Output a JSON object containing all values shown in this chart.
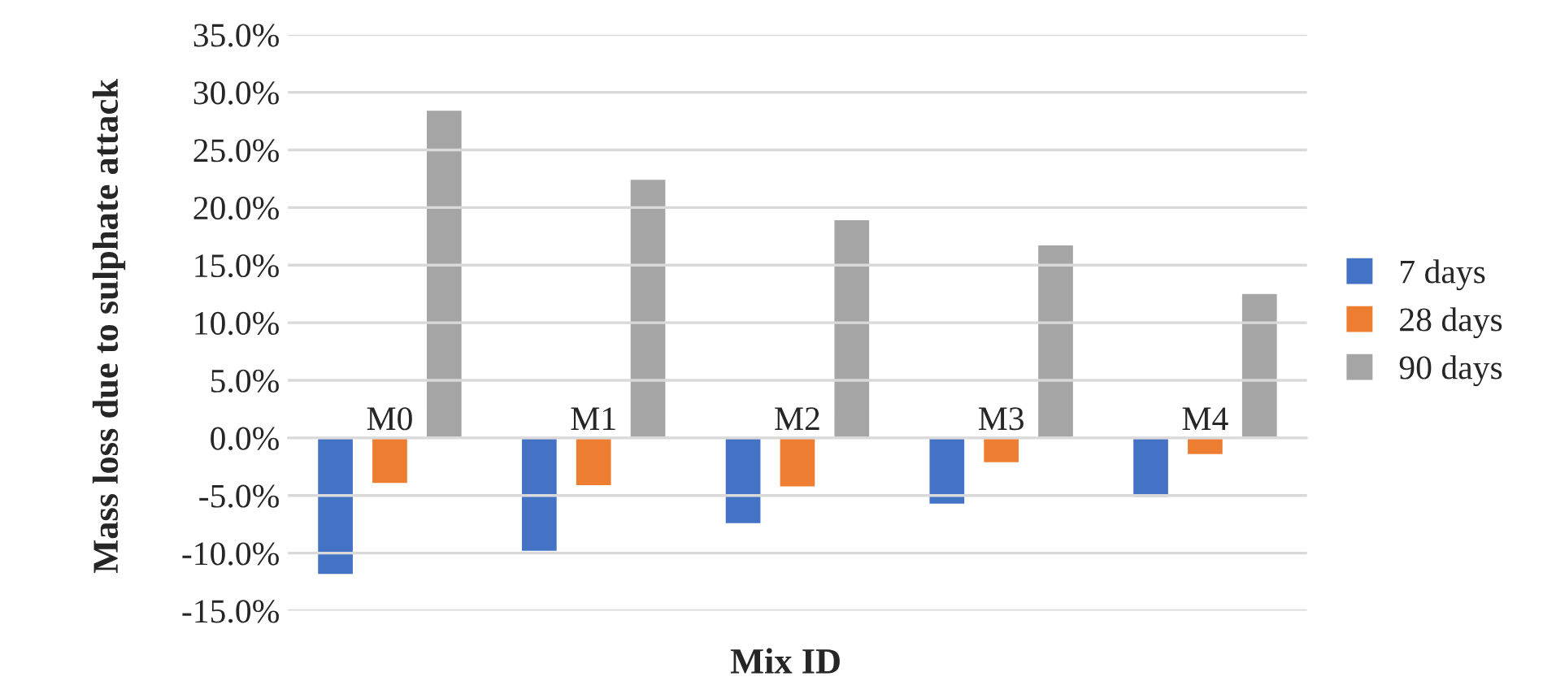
{
  "chart_data": {
    "type": "bar",
    "xlabel": "Mix ID",
    "ylabel": "Mass loss due to sulphate attack",
    "categories": [
      "M0",
      "M1",
      "M2",
      "M3",
      "M4"
    ],
    "series": [
      {
        "name": "7 days",
        "color": "#4472c4",
        "values": [
          -11.9,
          -9.9,
          -7.5,
          -5.8,
          -5.2
        ]
      },
      {
        "name": "28 days",
        "color": "#ed7d31",
        "values": [
          -4.0,
          -4.2,
          -4.3,
          -2.2,
          -1.5
        ]
      },
      {
        "name": "90 days",
        "color": "#a5a5a5",
        "values": [
          28.5,
          22.5,
          19.0,
          16.8,
          12.6
        ]
      }
    ],
    "ylim": [
      -15,
      35
    ],
    "yticks": [
      {
        "value": -15,
        "label": "-15.0%"
      },
      {
        "value": -10,
        "label": "-10.0%"
      },
      {
        "value": -5,
        "label": "-5.0%"
      },
      {
        "value": 0,
        "label": "0.0%"
      },
      {
        "value": 5,
        "label": "5.0%"
      },
      {
        "value": 10,
        "label": "10.0%"
      },
      {
        "value": 15,
        "label": "15.0%"
      },
      {
        "value": 20,
        "label": "20.0%"
      },
      {
        "value": 25,
        "label": "25.0%"
      },
      {
        "value": 30,
        "label": "30.0%"
      },
      {
        "value": 35,
        "label": "35.0%"
      }
    ],
    "grid": "y",
    "legend": "right"
  }
}
